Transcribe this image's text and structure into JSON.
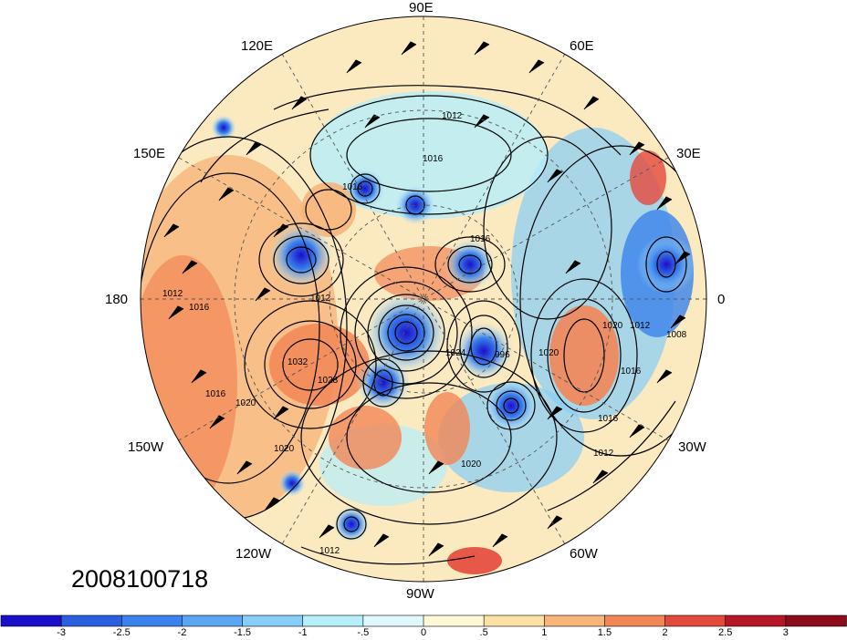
{
  "map": {
    "projection": "polar stereographic (north pole)",
    "longitude_labels": {
      "deg90E": "90E",
      "deg120E": "120E",
      "deg60E": "60E",
      "deg150E": "150E",
      "deg30E": "30E",
      "deg180": "180",
      "deg0": "0",
      "deg150W": "150W",
      "deg30W": "30W",
      "deg120W": "120W",
      "deg60W": "60W",
      "deg90W": "90W"
    },
    "contour_labels": [
      "1012",
      "1016",
      "1016",
      "1016",
      "1012",
      "1016",
      "1020",
      "1028",
      "1032",
      "1020",
      "1016",
      "996",
      "1020",
      "1024",
      "1020",
      "1016",
      "1012",
      "1020",
      "1016",
      "1012",
      "1008",
      "1012",
      "1012"
    ],
    "timestamp": "2008100718"
  },
  "colorbar": {
    "ticks": [
      "-3",
      "-2.5",
      "-2",
      "-1.5",
      "-1",
      "-.5",
      "0",
      ".5",
      "1",
      "1.5",
      "2",
      "2.5",
      "3"
    ],
    "colors": [
      "#1a0fc9",
      "#2c5fe0",
      "#3a82ec",
      "#5aa6f3",
      "#86cdf8",
      "#b7eefb",
      "#dff8fb",
      "#fff8d6",
      "#fbe1a4",
      "#f7b57a",
      "#f28656",
      "#e5483c",
      "#b61627",
      "#8d0c1c"
    ]
  }
}
